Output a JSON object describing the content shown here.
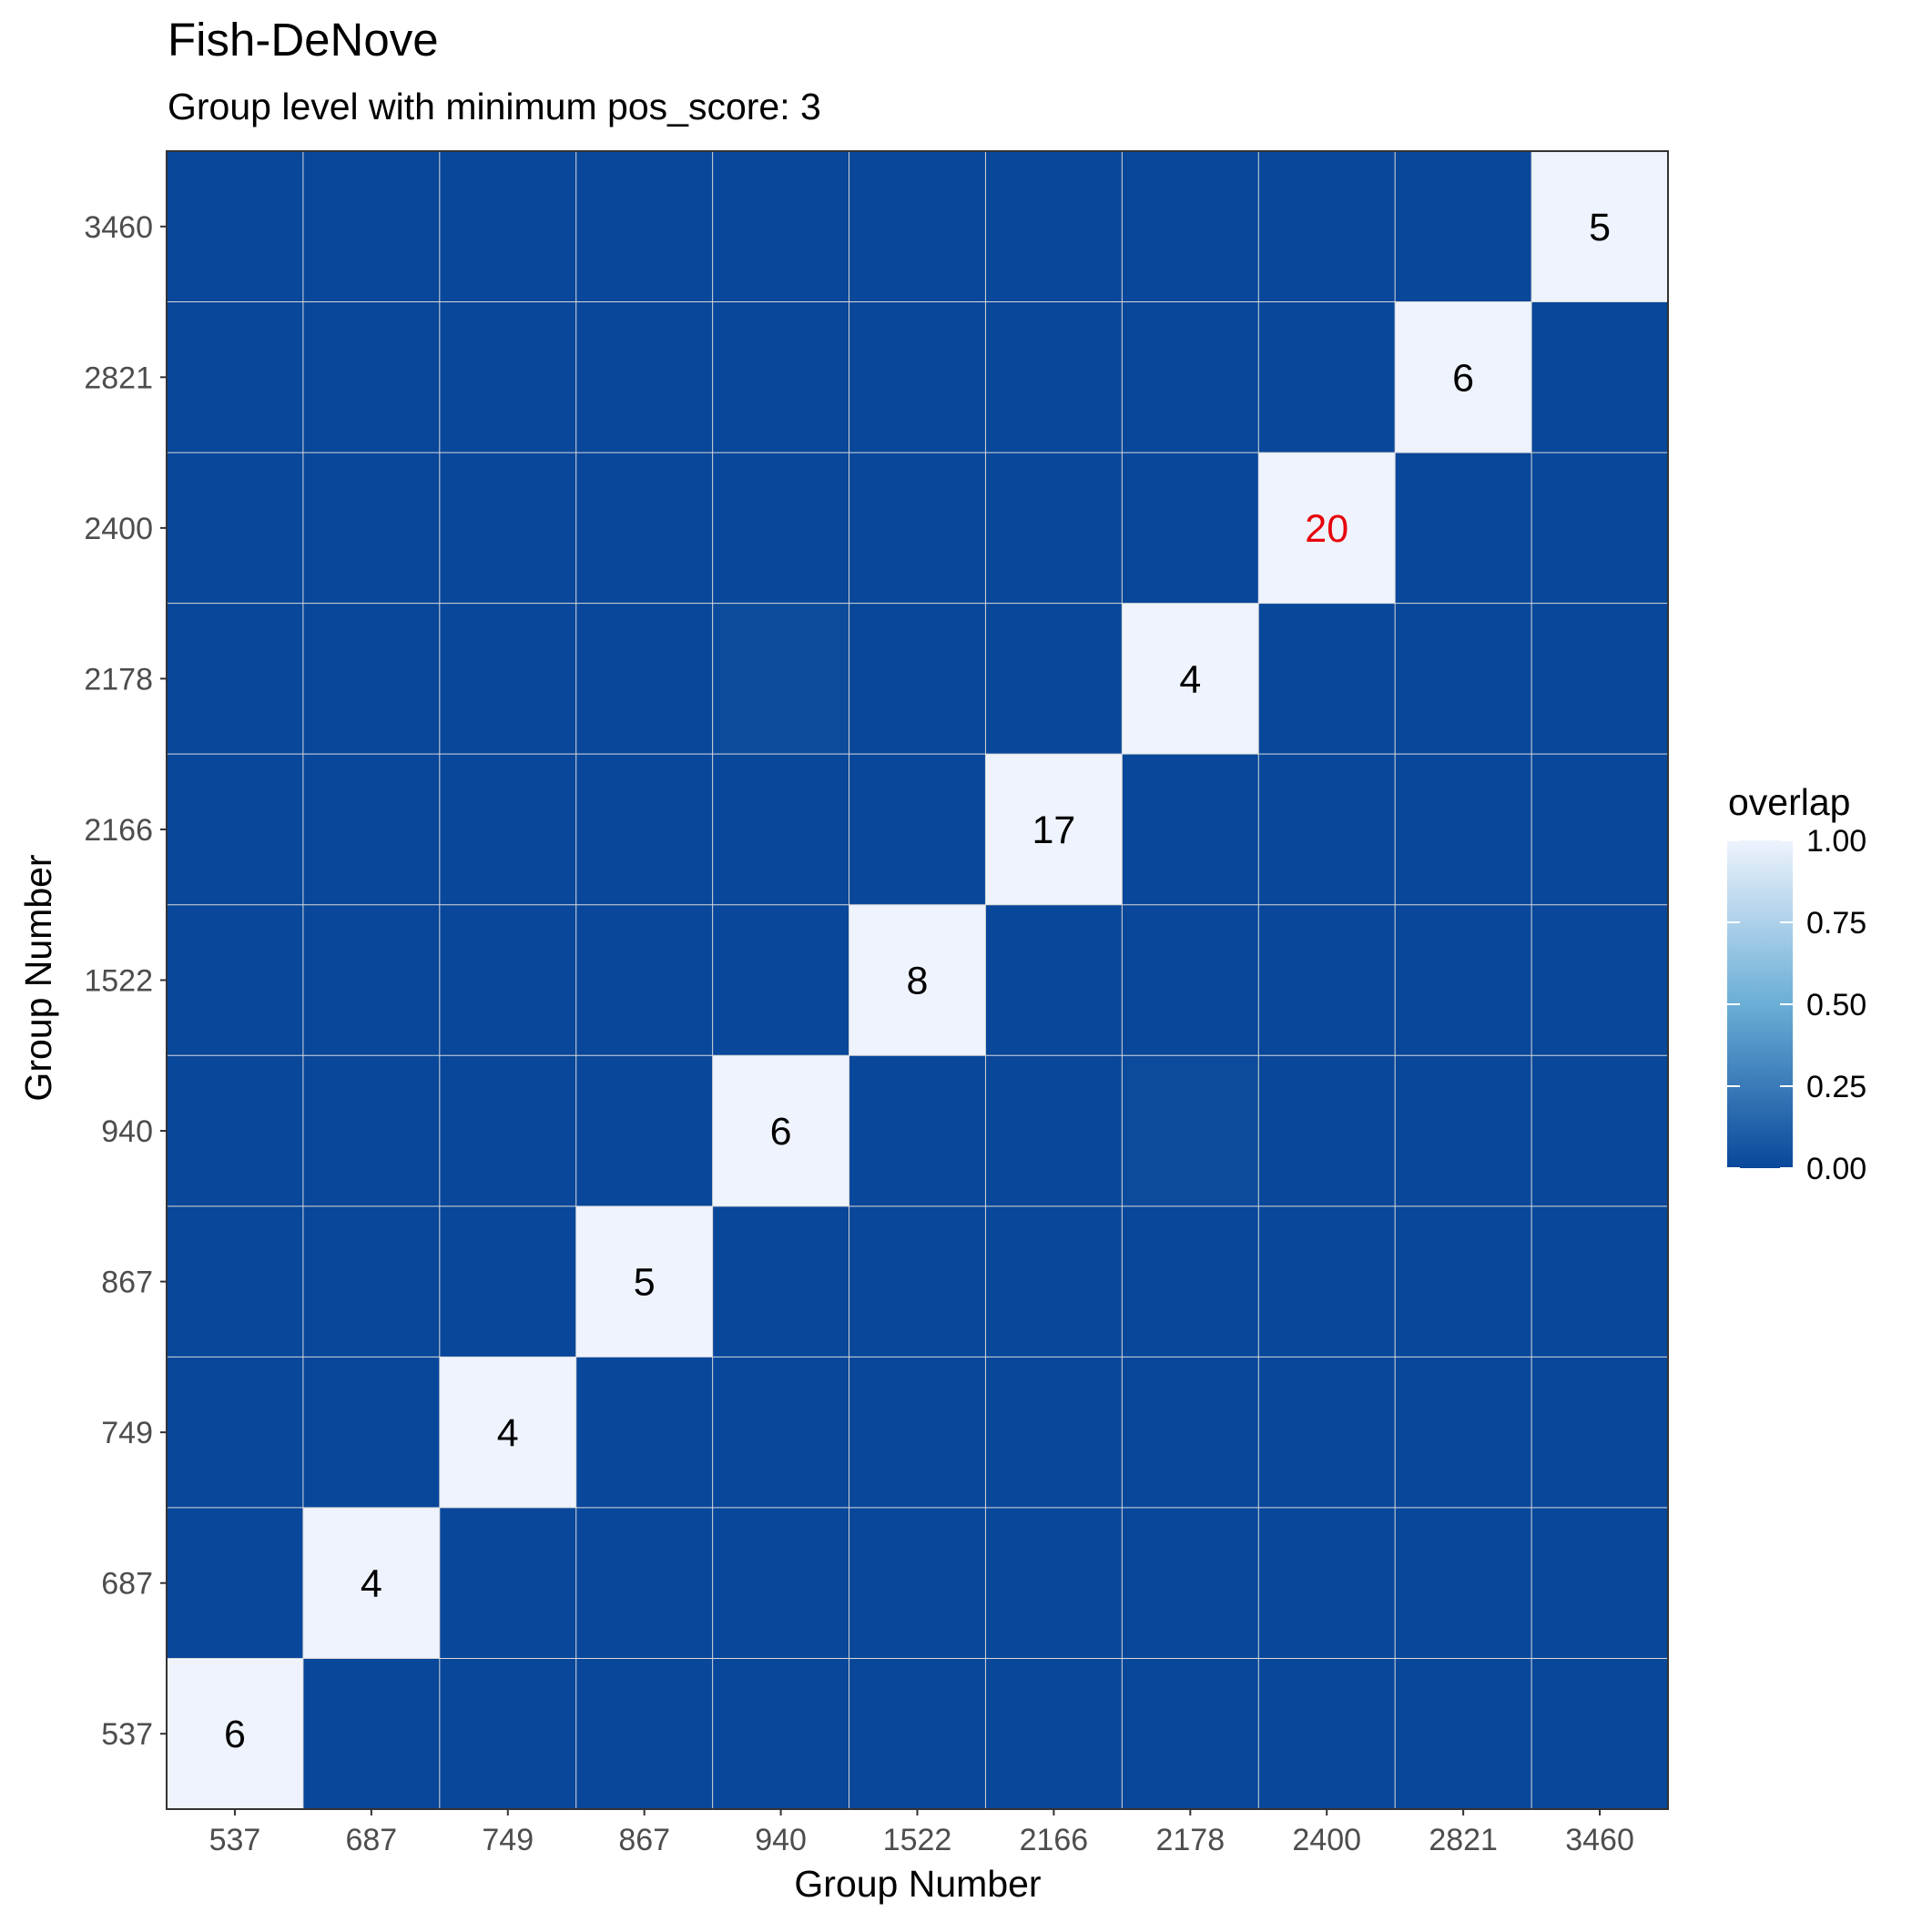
{
  "chart_data": {
    "type": "heatmap",
    "title": "Fish-DeNove",
    "subtitle": "Group level with minimum pos_score: 3",
    "xlabel": "Group Number",
    "ylabel": "Group Number",
    "x_categories": [
      "537",
      "687",
      "749",
      "867",
      "940",
      "1522",
      "2166",
      "2178",
      "2400",
      "2821",
      "3460"
    ],
    "y_categories": [
      "537",
      "687",
      "749",
      "867",
      "940",
      "1522",
      "2166",
      "2178",
      "2400",
      "2821",
      "3460"
    ],
    "cells": [
      {
        "x": "537",
        "y": "537",
        "overlap": 1.0,
        "label": "6"
      },
      {
        "x": "687",
        "y": "687",
        "overlap": 1.0,
        "label": "4"
      },
      {
        "x": "749",
        "y": "749",
        "overlap": 1.0,
        "label": "4"
      },
      {
        "x": "867",
        "y": "867",
        "overlap": 1.0,
        "label": "5"
      },
      {
        "x": "940",
        "y": "940",
        "overlap": 1.0,
        "label": "6"
      },
      {
        "x": "1522",
        "y": "1522",
        "overlap": 1.0,
        "label": "8"
      },
      {
        "x": "2166",
        "y": "2166",
        "overlap": 1.0,
        "label": "17"
      },
      {
        "x": "2178",
        "y": "2178",
        "overlap": 1.0,
        "label": "4"
      },
      {
        "x": "2400",
        "y": "2400",
        "overlap": 1.0,
        "label": "20",
        "label_color": "#e8000b"
      },
      {
        "x": "2821",
        "y": "2821",
        "overlap": 1.0,
        "label": "6"
      },
      {
        "x": "3460",
        "y": "3460",
        "overlap": 1.0,
        "label": "5"
      },
      {
        "x": "940",
        "y": "2178",
        "overlap": 0.02
      },
      {
        "x": "2178",
        "y": "940",
        "overlap": 0.02
      }
    ],
    "default_overlap": 0.0,
    "legend": {
      "title": "overlap",
      "ticks": [
        "1.00",
        "0.75",
        "0.50",
        "0.25",
        "0.00"
      ],
      "range": [
        0,
        1
      ],
      "placement": "right"
    },
    "colors": {
      "low": "#08479a",
      "mid": "#6baed6",
      "high": "#eef3fd",
      "grid": "#d9d9d9",
      "label_default": "#000000"
    },
    "grid": true
  }
}
